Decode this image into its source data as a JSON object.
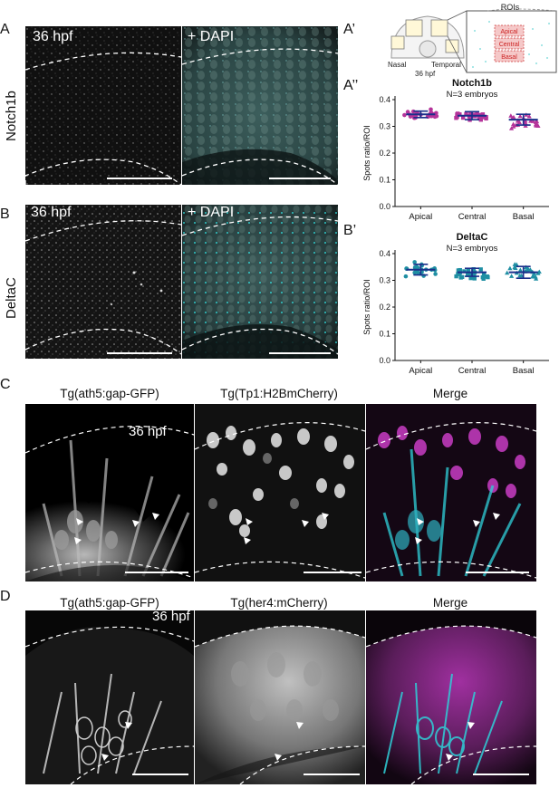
{
  "panel_labels": {
    "A": "A",
    "A1": "A’",
    "A2": "A’’",
    "B": "B",
    "B1": "B’",
    "C": "C",
    "D": "D"
  },
  "row_labels": {
    "a": "Notch1b",
    "b": "DeltaC"
  },
  "panel_a": {
    "stage": "36 hpf",
    "overlay": "+ DAPI"
  },
  "panel_b": {
    "stage": "36 hpf",
    "overlay": "+ DAPI"
  },
  "schematic": {
    "title": "ROIs",
    "rois": [
      "Apical",
      "Central",
      "Basal"
    ],
    "nasal": "Nasal",
    "temporal": "Temporal",
    "stage": "36 hpf"
  },
  "panel_c": {
    "titles": [
      "Tg(ath5:gap-GFP)",
      "Tg(Tp1:H2BmCherry)",
      "Merge"
    ],
    "stage": "36 hpf"
  },
  "panel_d": {
    "titles": [
      "Tg(ath5:gap-GFP)",
      "Tg(her4:mCherry)",
      "Merge"
    ],
    "stage": "36 hpf"
  },
  "colors": {
    "magenta": "#b5349a",
    "teal": "#1f8fa3",
    "cyan_channel": "#2fd0d8",
    "magenta_channel": "#c83cc4"
  },
  "chart_data": [
    {
      "type": "scatter",
      "title": "Notch1b",
      "subtitle": "N=3 embryos",
      "ylabel": "Spots ratio/ROI",
      "categories": [
        "Apical",
        "Central",
        "Basal"
      ],
      "ylim": [
        0,
        0.4
      ],
      "yticks": [
        "0.0",
        "0.1",
        "0.2",
        "0.3",
        "0.4"
      ],
      "color": "#b5349a",
      "groups": [
        {
          "name": "Apical",
          "mean": 0.345,
          "sd": 0.012,
          "min": 0.32,
          "max": 0.37
        },
        {
          "name": "Central",
          "mean": 0.34,
          "sd": 0.015,
          "min": 0.31,
          "max": 0.37
        },
        {
          "name": "Basal",
          "mean": 0.325,
          "sd": 0.02,
          "min": 0.28,
          "max": 0.36
        }
      ]
    },
    {
      "type": "scatter",
      "title": "DeltaC",
      "subtitle": "N=3 embryos",
      "ylabel": "Spots ratio/ROI",
      "categories": [
        "Apical",
        "Central",
        "Basal"
      ],
      "ylim": [
        0,
        0.4
      ],
      "yticks": [
        "0.0",
        "0.1",
        "0.2",
        "0.3",
        "0.4"
      ],
      "color": "#1f8fa3",
      "groups": [
        {
          "name": "Apical",
          "mean": 0.34,
          "sd": 0.02,
          "min": 0.3,
          "max": 0.38
        },
        {
          "name": "Central",
          "mean": 0.33,
          "sd": 0.015,
          "min": 0.29,
          "max": 0.36
        },
        {
          "name": "Basal",
          "mean": 0.33,
          "sd": 0.022,
          "min": 0.29,
          "max": 0.37
        }
      ]
    }
  ]
}
